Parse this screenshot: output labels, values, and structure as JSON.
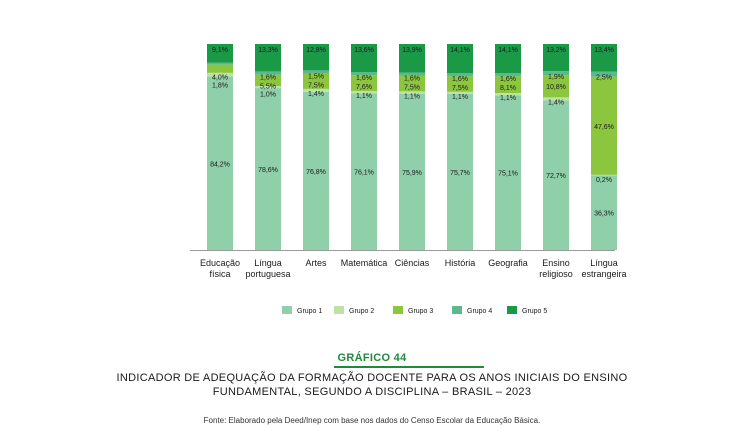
{
  "chart_data": {
    "type": "bar",
    "stacked": true,
    "percent_stacked": true,
    "categories": [
      [
        "Educação",
        "física"
      ],
      [
        "Língua",
        "portuguesa"
      ],
      [
        "Artes"
      ],
      [
        "Matemática"
      ],
      [
        "Ciências"
      ],
      [
        "História"
      ],
      [
        "Geografia"
      ],
      [
        "Ensino",
        "religioso"
      ],
      [
        "Língua",
        "estrangeira"
      ]
    ],
    "series": [
      {
        "name": "Grupo 1",
        "color": "#8fcfaa",
        "values": [
          84.2,
          78.6,
          76.8,
          76.1,
          75.9,
          75.7,
          75.1,
          72.7,
          36.3
        ],
        "labels": [
          "84,2%",
          "78,6%",
          "76,8%",
          "76,1%",
          "75,9%",
          "75,7%",
          "75,1%",
          "72,7%",
          "36,3%"
        ]
      },
      {
        "name": "Grupo 2",
        "color": "#bfe2a4",
        "values": [
          1.8,
          1.0,
          1.4,
          1.1,
          1.1,
          1.1,
          1.1,
          1.4,
          0.2
        ],
        "labels": [
          "1,8%",
          "1,0%",
          "1,4%",
          "1,1%",
          "1,1%",
          "1,1%",
          "1,1%",
          "1,4%",
          "0,2%"
        ]
      },
      {
        "name": "Grupo 3",
        "color": "#8cc63f",
        "values": [
          4.0,
          5.5,
          7.5,
          7.6,
          7.5,
          7.5,
          8.1,
          10.8,
          47.6
        ],
        "labels": [
          "4,0%",
          "5,5%",
          "7,5%",
          "7,6%",
          "7,5%",
          "7,5%",
          "8,1%",
          "10,8%",
          "47,6%"
        ]
      },
      {
        "name": "Grupo 4",
        "color": "#5bb98b",
        "values": [
          0.9,
          1.6,
          1.5,
          1.6,
          1.6,
          1.6,
          1.6,
          1.9,
          2.5
        ],
        "labels": [
          "",
          "1,6%",
          "1,5%",
          "1,6%",
          "1,6%",
          "1,6%",
          "1,6%",
          "1,9%",
          "2,5%"
        ]
      },
      {
        "name": "Grupo 5",
        "color": "#1a9a47",
        "values": [
          9.1,
          13.3,
          12.8,
          13.6,
          13.9,
          14.1,
          14.1,
          13.2,
          13.4
        ],
        "labels": [
          "9,1%",
          "13,3%",
          "12,8%",
          "13,6%",
          "13,9%",
          "14,1%",
          "14,1%",
          "13,2%",
          "13,4%"
        ]
      }
    ],
    "ylim": [
      0,
      100
    ],
    "grid": false,
    "legend_position": "bottom"
  },
  "figure": {
    "label": "GRÁFICO 44",
    "title_line1": "INDICADOR DE ADEQUAÇÃO DA FORMAÇÃO DOCENTE PARA OS ANOS INICIAIS DO ENSINO",
    "title_line2": "FUNDAMENTAL, SEGUNDO A DISCIPLINA – BRASIL – 2023",
    "source": "Fonte: Elaborado pela Deed/Inep com base nos dados do Censo Escolar da Educação Básica."
  }
}
